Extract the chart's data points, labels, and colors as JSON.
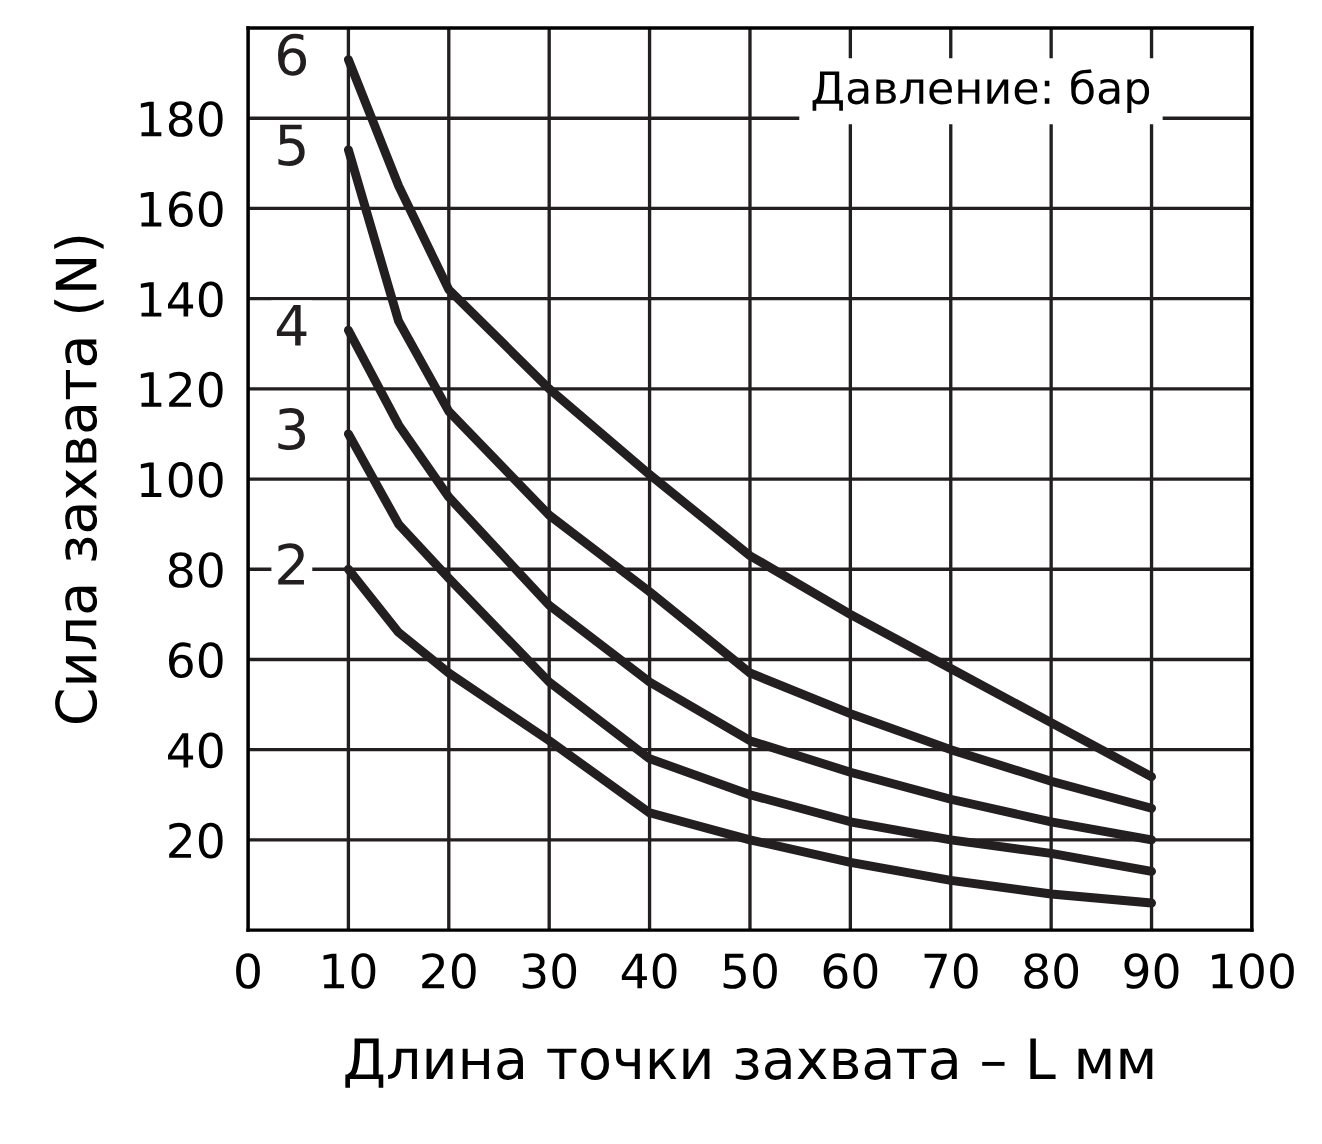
{
  "chart_data": {
    "type": "line",
    "xlabel": "Длина точки захвата – L мм",
    "ylabel": "Сила захвата (N)",
    "annotations": [
      "Давление: бар"
    ],
    "x": [
      10,
      15,
      20,
      30,
      40,
      50,
      60,
      70,
      80,
      90
    ],
    "series": [
      {
        "name": "2",
        "color": "#231f20",
        "values": [
          80,
          66,
          57,
          42,
          26,
          20,
          15,
          11,
          8,
          6
        ]
      },
      {
        "name": "3",
        "color": "#231f20",
        "values": [
          110,
          90,
          78,
          55,
          38,
          30,
          24,
          20,
          17,
          13
        ]
      },
      {
        "name": "4",
        "color": "#231f20",
        "values": [
          133,
          112,
          96,
          72,
          55,
          42,
          35,
          29,
          24,
          20
        ]
      },
      {
        "name": "5",
        "color": "#231f20",
        "values": [
          173,
          135,
          115,
          92,
          75,
          57,
          48,
          40,
          33,
          27
        ]
      },
      {
        "name": "6",
        "color": "#231f20",
        "values": [
          193,
          165,
          142,
          120,
          101,
          83,
          70,
          58,
          46,
          34
        ]
      }
    ],
    "xlim": [
      0,
      100
    ],
    "ylim": [
      0,
      200
    ],
    "xticks": [
      0,
      10,
      20,
      30,
      40,
      50,
      60,
      70,
      80,
      90,
      100
    ],
    "yticks": [
      20,
      40,
      60,
      80,
      100,
      120,
      140,
      160,
      180
    ],
    "grid": true,
    "marker": "none",
    "line_style": "solid"
  }
}
